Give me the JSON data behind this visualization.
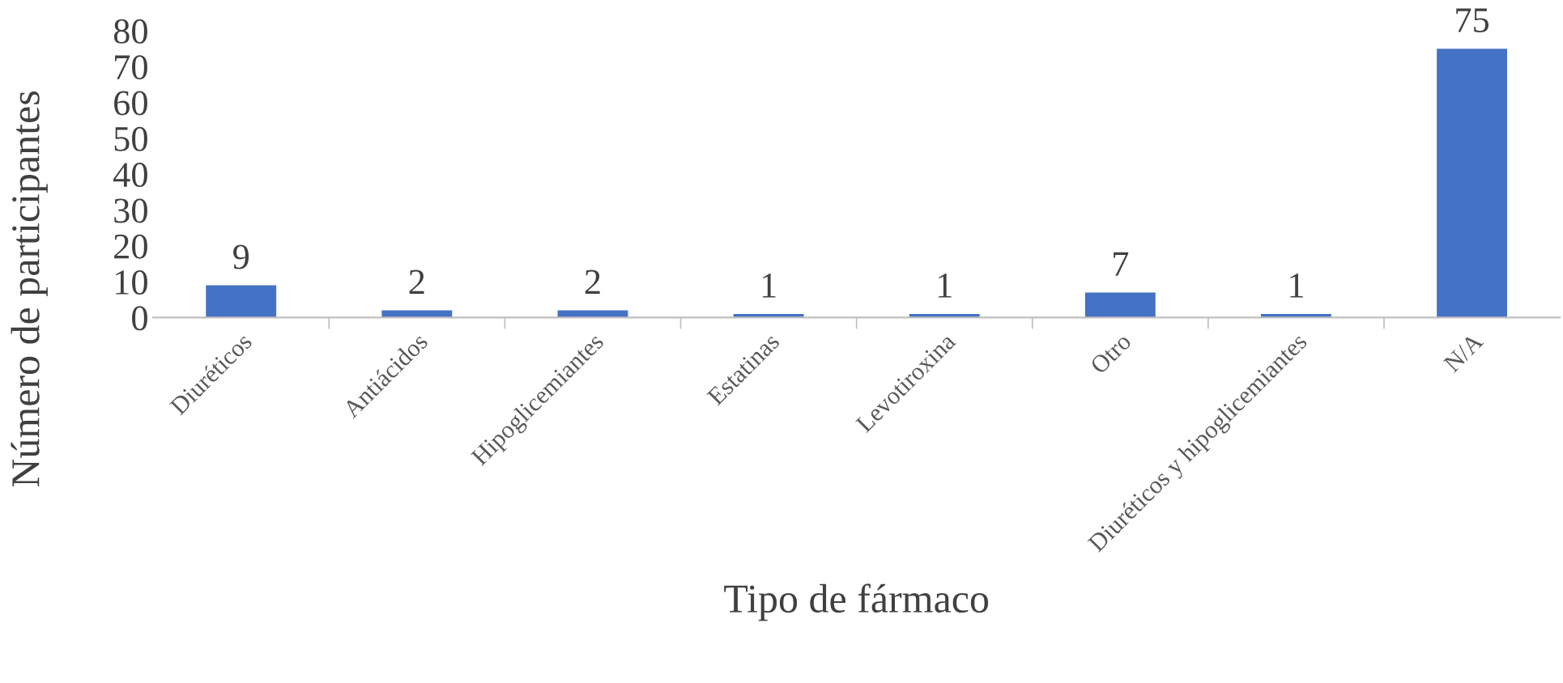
{
  "chart_data": {
    "type": "bar",
    "xlabel": "Tipo de fármaco",
    "ylabel": "Número de participantes",
    "categories": [
      "Diuréticos",
      "Antiácidos",
      "Hipoglicemiantes",
      "Estatinas",
      "Levotiroxina",
      "Otro",
      "Diuréticos y hipoglicemiantes",
      "N/A"
    ],
    "values": [
      9,
      2,
      2,
      1,
      1,
      7,
      1,
      75
    ],
    "color": "#4472c4",
    "ylim": [
      0,
      80
    ],
    "yticks": [
      0,
      10,
      20,
      30,
      40,
      50,
      60,
      70,
      80
    ],
    "grid": false,
    "data_labels": true
  }
}
